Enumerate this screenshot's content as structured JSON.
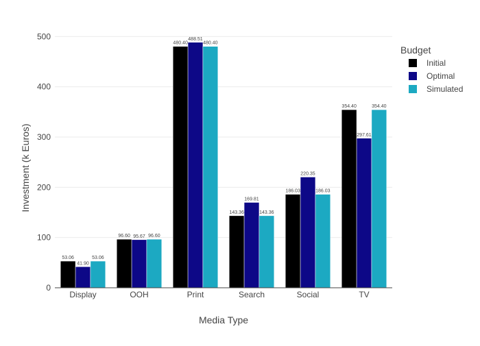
{
  "chart_data": {
    "type": "bar",
    "title": "",
    "xlabel": "Media Type",
    "ylabel": "Investment (k Euros)",
    "ylim": [
      0,
      525
    ],
    "yticks": [
      0,
      100,
      200,
      300,
      400,
      500
    ],
    "categories": [
      "Display",
      "OOH",
      "Print",
      "Search",
      "Social",
      "TV"
    ],
    "grid": true,
    "legend": {
      "title": "Budget",
      "position": "top-right"
    },
    "series": [
      {
        "name": "Initial",
        "color": "#000000",
        "values": [
          53.06,
          96.6,
          480.4,
          143.36,
          186.03,
          354.4
        ],
        "labels": [
          "53.06",
          "96.60",
          "480.40",
          "143.36",
          "186.03",
          "354.40"
        ]
      },
      {
        "name": "Optimal",
        "color": "#0d0887",
        "values": [
          41.9,
          95.67,
          488.51,
          169.81,
          220.35,
          297.61
        ],
        "labels": [
          "41.90",
          "95.67",
          "488.51",
          "169.81",
          "220.35",
          "297.61"
        ]
      },
      {
        "name": "Simulated",
        "color": "#1ca9c2",
        "values": [
          53.06,
          96.6,
          480.4,
          143.36,
          186.03,
          354.4
        ],
        "labels": [
          "53.06",
          "96.60",
          "480.40",
          "143.36",
          "186.03",
          "354.40"
        ]
      }
    ]
  }
}
